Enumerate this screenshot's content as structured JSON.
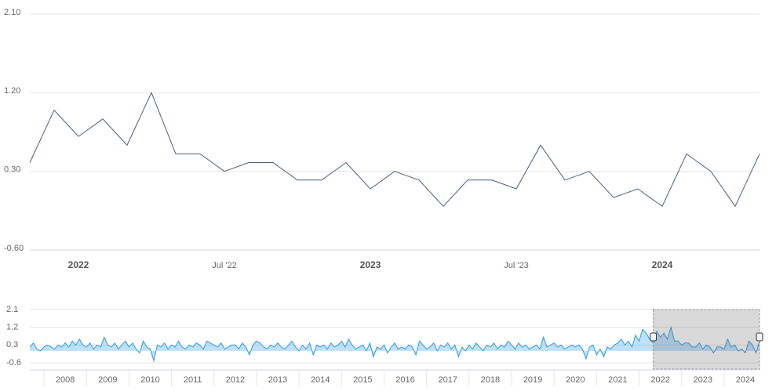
{
  "chart_data": [
    {
      "type": "line",
      "color": "#4a5f80",
      "x": [
        "2021-11",
        "2021-12",
        "2022-01",
        "2022-02",
        "2022-03",
        "2022-04",
        "2022-05",
        "2022-06",
        "2022-07",
        "2022-08",
        "2022-09",
        "2022-10",
        "2022-11",
        "2022-12",
        "2023-01",
        "2023-02",
        "2023-03",
        "2023-04",
        "2023-05",
        "2023-06",
        "2023-07",
        "2023-08",
        "2023-09",
        "2023-10",
        "2023-11",
        "2023-12",
        "2024-01",
        "2024-02",
        "2024-03",
        "2024-04",
        "2024-05"
      ],
      "values": [
        0.4,
        1.0,
        0.7,
        0.9,
        0.6,
        1.2,
        0.5,
        0.5,
        0.3,
        0.4,
        0.4,
        0.2,
        0.2,
        0.4,
        0.1,
        0.3,
        0.2,
        -0.1,
        0.2,
        0.2,
        0.1,
        0.6,
        0.2,
        0.3,
        0.0,
        0.1,
        -0.1,
        0.5,
        0.3,
        -0.1,
        0.5
      ],
      "xlim": [
        "2021-11",
        "2024-05"
      ],
      "xticks": [
        {
          "value": "2022-01",
          "label": "2022"
        },
        {
          "value": "2022-07",
          "label": "Jul '22"
        },
        {
          "value": "2023-01",
          "label": "2023"
        },
        {
          "value": "2023-07",
          "label": "Jul '23"
        },
        {
          "value": "2024-01",
          "label": "2024"
        }
      ],
      "ylim": [
        -0.6,
        2.1
      ],
      "yticks": [
        {
          "value": -0.6,
          "label": "-0.60"
        },
        {
          "value": 0.3,
          "label": "0.30"
        },
        {
          "value": 1.2,
          "label": "1.20"
        },
        {
          "value": 2.1,
          "label": "2.10"
        }
      ],
      "grid": true
    },
    {
      "type": "area",
      "color": "#2b9be8",
      "x": [
        "2007-03",
        "2007-04",
        "2007-05",
        "2007-06",
        "2007-07",
        "2007-08",
        "2007-09",
        "2007-10",
        "2007-11",
        "2007-12",
        "2008-01",
        "2008-02",
        "2008-03",
        "2008-04",
        "2008-05",
        "2008-06",
        "2008-07",
        "2008-08",
        "2008-09",
        "2008-10",
        "2008-11",
        "2008-12",
        "2009-01",
        "2009-02",
        "2009-03",
        "2009-04",
        "2009-05",
        "2009-06",
        "2009-07",
        "2009-08",
        "2009-09",
        "2009-10",
        "2009-11",
        "2009-12",
        "2010-01",
        "2010-02",
        "2010-03",
        "2010-04",
        "2010-05",
        "2010-06",
        "2010-07",
        "2010-08",
        "2010-09",
        "2010-10",
        "2010-11",
        "2010-12",
        "2011-01",
        "2011-02",
        "2011-03",
        "2011-04",
        "2011-05",
        "2011-06",
        "2011-07",
        "2011-08",
        "2011-09",
        "2011-10",
        "2011-11",
        "2011-12",
        "2012-01",
        "2012-02",
        "2012-03",
        "2012-04",
        "2012-05",
        "2012-06",
        "2012-07",
        "2012-08",
        "2012-09",
        "2012-10",
        "2012-11",
        "2012-12",
        "2013-01",
        "2013-02",
        "2013-03",
        "2013-04",
        "2013-05",
        "2013-06",
        "2013-07",
        "2013-08",
        "2013-09",
        "2013-10",
        "2013-11",
        "2013-12",
        "2014-01",
        "2014-02",
        "2014-03",
        "2014-04",
        "2014-05",
        "2014-06",
        "2014-07",
        "2014-08",
        "2014-09",
        "2014-10",
        "2014-11",
        "2014-12",
        "2015-01",
        "2015-02",
        "2015-03",
        "2015-04",
        "2015-05",
        "2015-06",
        "2015-07",
        "2015-08",
        "2015-09",
        "2015-10",
        "2015-11",
        "2015-12",
        "2016-01",
        "2016-02",
        "2016-03",
        "2016-04",
        "2016-05",
        "2016-06",
        "2016-07",
        "2016-08",
        "2016-09",
        "2016-10",
        "2016-11",
        "2016-12",
        "2017-01",
        "2017-02",
        "2017-03",
        "2017-04",
        "2017-05",
        "2017-06",
        "2017-07",
        "2017-08",
        "2017-09",
        "2017-10",
        "2017-11",
        "2017-12",
        "2018-01",
        "2018-02",
        "2018-03",
        "2018-04",
        "2018-05",
        "2018-06",
        "2018-07",
        "2018-08",
        "2018-09",
        "2018-10",
        "2018-11",
        "2018-12",
        "2019-01",
        "2019-02",
        "2019-03",
        "2019-04",
        "2019-05",
        "2019-06",
        "2019-07",
        "2019-08",
        "2019-09",
        "2019-10",
        "2019-11",
        "2019-12",
        "2020-01",
        "2020-02",
        "2020-03",
        "2020-04",
        "2020-05",
        "2020-06",
        "2020-07",
        "2020-08",
        "2020-09",
        "2020-10",
        "2020-11",
        "2020-12",
        "2021-01",
        "2021-02",
        "2021-03",
        "2021-04",
        "2021-05",
        "2021-06",
        "2021-07",
        "2021-08",
        "2021-09",
        "2021-10",
        "2021-11",
        "2021-12",
        "2022-01",
        "2022-02",
        "2022-03",
        "2022-04",
        "2022-05",
        "2022-06",
        "2022-07",
        "2022-08",
        "2022-09",
        "2022-10",
        "2022-11",
        "2022-12",
        "2023-01",
        "2023-02",
        "2023-03",
        "2023-04",
        "2023-05",
        "2023-06",
        "2023-07",
        "2023-08",
        "2023-09",
        "2023-10",
        "2023-11",
        "2023-12",
        "2024-01",
        "2024-02",
        "2024-03",
        "2024-04",
        "2024-05"
      ],
      "values": [
        0.2,
        0.4,
        0.1,
        0.0,
        0.2,
        0.3,
        0.2,
        0.1,
        0.3,
        0.2,
        0.4,
        0.2,
        0.5,
        0.3,
        0.6,
        0.3,
        0.2,
        0.4,
        0.1,
        0.3,
        0.2,
        0.7,
        0.3,
        0.2,
        0.4,
        0.1,
        0.3,
        0.5,
        0.2,
        0.4,
        0.1,
        -0.1,
        0.5,
        0.2,
        0.1,
        -0.5,
        0.3,
        0.2,
        0.4,
        0.1,
        0.3,
        0.2,
        0.5,
        0.2,
        0.1,
        0.3,
        0.2,
        0.4,
        0.3,
        0.1,
        0.5,
        0.4,
        0.3,
        0.2,
        0.4,
        0.1,
        0.2,
        0.3,
        0.3,
        0.1,
        0.4,
        0.2,
        -0.2,
        0.3,
        0.5,
        0.4,
        0.2,
        0.1,
        0.3,
        0.2,
        0.4,
        0.2,
        0.1,
        0.3,
        0.5,
        0.2,
        0.0,
        0.3,
        0.1,
        0.4,
        -0.2,
        0.3,
        0.2,
        0.3,
        0.1,
        0.4,
        0.2,
        0.3,
        0.5,
        0.2,
        0.6,
        0.3,
        0.1,
        0.2,
        0.3,
        0.0,
        0.4,
        -0.3,
        0.2,
        0.1,
        0.3,
        -0.1,
        0.2,
        0.4,
        0.1,
        0.2,
        0.1,
        0.3,
        0.2,
        -0.2,
        0.5,
        0.3,
        0.1,
        0.2,
        0.4,
        0.0,
        0.3,
        0.2,
        0.4,
        0.1,
        0.3,
        -0.3,
        0.2,
        0.0,
        0.3,
        0.1,
        0.4,
        0.2,
        0.0,
        0.3,
        0.2,
        0.4,
        0.1,
        0.3,
        0.2,
        0.5,
        0.3,
        0.1,
        0.4,
        0.2,
        0.3,
        0.1,
        0.2,
        0.3,
        0.1,
        0.7,
        0.2,
        0.3,
        0.4,
        0.2,
        0.3,
        0.1,
        0.2,
        0.3,
        0.2,
        0.3,
        0.1,
        -0.4,
        0.2,
        0.3,
        -0.2,
        0.1,
        -0.3,
        0.2,
        0.1,
        0.3,
        0.4,
        0.6,
        0.3,
        0.5,
        0.2,
        0.8,
        0.5,
        1.1,
        0.9,
        0.6,
        0.4,
        1.0,
        0.7,
        0.9,
        0.6,
        1.2,
        0.5,
        0.5,
        0.3,
        0.4,
        0.4,
        0.2,
        0.2,
        0.4,
        0.1,
        0.3,
        0.2,
        -0.1,
        0.2,
        0.2,
        0.1,
        0.6,
        0.2,
        0.3,
        0.0,
        0.1,
        -0.1,
        0.5,
        0.3,
        -0.1,
        0.5
      ],
      "xlim": [
        "2007-03",
        "2024-05"
      ],
      "xticks": [
        {
          "value": "2008-01",
          "label": "2008"
        },
        {
          "value": "2009-01",
          "label": "2009"
        },
        {
          "value": "2010-01",
          "label": "2010"
        },
        {
          "value": "2011-01",
          "label": "2011"
        },
        {
          "value": "2012-01",
          "label": "2012"
        },
        {
          "value": "2013-01",
          "label": "2013"
        },
        {
          "value": "2014-01",
          "label": "2014"
        },
        {
          "value": "2015-01",
          "label": "2015"
        },
        {
          "value": "2016-01",
          "label": "2016"
        },
        {
          "value": "2017-01",
          "label": "2017"
        },
        {
          "value": "2018-01",
          "label": "2018"
        },
        {
          "value": "2019-01",
          "label": "2019"
        },
        {
          "value": "2020-01",
          "label": "2020"
        },
        {
          "value": "2021-01",
          "label": "2021"
        },
        {
          "value": "2022-01",
          "label": "2022"
        },
        {
          "value": "2023-01",
          "label": "2023"
        },
        {
          "value": "2024-01",
          "label": "2024"
        }
      ],
      "ylim": [
        -0.6,
        2.1
      ],
      "yticks": [
        -0.6,
        0.3,
        1.2,
        2.1
      ],
      "grid": true
    }
  ]
}
